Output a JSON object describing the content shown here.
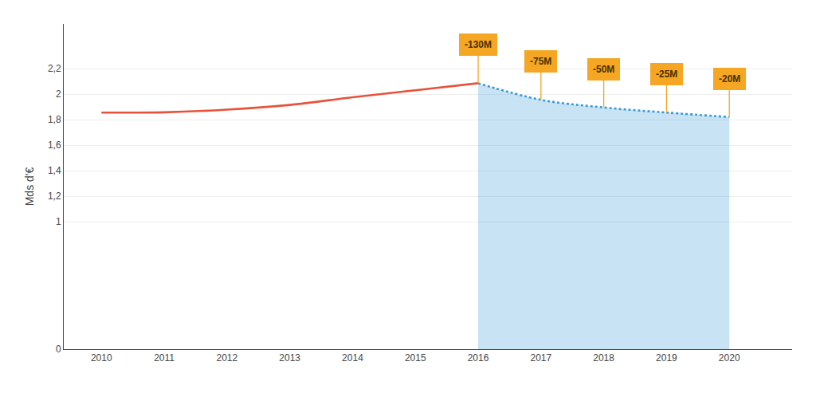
{
  "chart_data": {
    "type": "area",
    "ylabel": "Mds d'€",
    "series": [
      {
        "type": "line",
        "x": [
          2010,
          2011,
          2012,
          2013,
          2014,
          2015,
          2016
        ],
        "values": [
          1.855,
          1.857,
          1.878,
          1.915,
          1.975,
          2.03,
          2.085
        ],
        "color": "#E8523A",
        "line_style": "solid"
      },
      {
        "type": "area",
        "x": [
          2016,
          2017,
          2018,
          2019,
          2020
        ],
        "values": [
          2.085,
          1.955,
          1.895,
          1.855,
          1.82
        ],
        "color": "#3A9AD9",
        "line_style": "dotted"
      }
    ],
    "annotations": [
      {
        "text": "-130M",
        "color": "#F5A623"
      },
      {
        "text": "-75M",
        "color": "#F5A623"
      },
      {
        "text": "-50M",
        "color": "#F5A623"
      },
      {
        "text": "-25M",
        "color": "#F5A623"
      },
      {
        "text": "-20M",
        "color": "#F5A623"
      }
    ],
    "xlim": [
      2009.4,
      2021.0
    ],
    "ylim": [
      0,
      2.55
    ],
    "xticks": [
      2010,
      2011,
      2012,
      2013,
      2014,
      2015,
      2016,
      2017,
      2018,
      2019,
      2020
    ],
    "yticks": [
      0,
      1,
      {
        "value": 1.2,
        "label": "1,2"
      },
      {
        "value": 1.4,
        "label": "1,4"
      },
      {
        "value": 1.6,
        "label": "1,6"
      },
      {
        "value": 1.8,
        "label": "1,8"
      },
      2,
      {
        "value": 2.2,
        "label": "2,2"
      }
    ],
    "grid": true
  }
}
